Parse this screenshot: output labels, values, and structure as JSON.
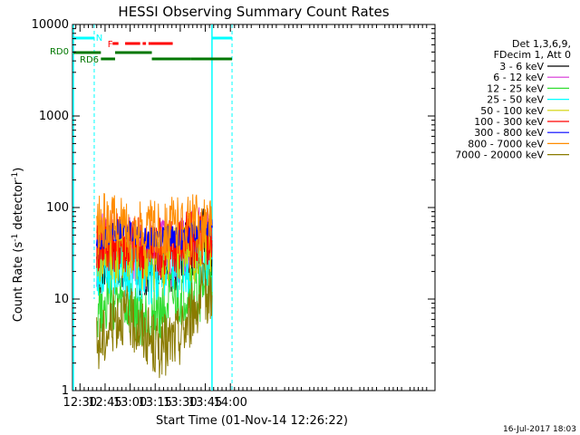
{
  "chart_data": {
    "type": "line",
    "title": "HESSI Observing Summary Count Rates",
    "xlabel": "Start Time (01-Nov-14 12:26:22)",
    "ylabel_main": "Count Rate (s",
    "ylabel_sup1": "-1",
    "ylabel_mid": " detector",
    "ylabel_sup2": "-1",
    "ylabel_end": ")",
    "yscale": "log",
    "ylim": [
      1,
      10000
    ],
    "xlim_minutes": [
      745.5,
      962.5
    ],
    "x_ticks": [
      {
        "label": "12:30",
        "min": 750
      },
      {
        "label": "12:45",
        "min": 765
      },
      {
        "label": "13:00",
        "min": 780
      },
      {
        "label": "13:15",
        "min": 795
      },
      {
        "label": "13:30",
        "min": 810
      },
      {
        "label": "13:45",
        "min": 825
      },
      {
        "label": "14:00",
        "min": 840
      }
    ],
    "y_ticks": [
      {
        "label": "1",
        "value": 1
      },
      {
        "label": "10",
        "value": 10
      },
      {
        "label": "100",
        "value": 100
      },
      {
        "label": "1000",
        "value": 1000
      },
      {
        "label": "10000",
        "value": 10000
      }
    ],
    "legend_header": [
      "Det 1,3,6,9,",
      "FDecim 1, Att 0"
    ],
    "series": [
      {
        "name": "3 - 6 keV",
        "color": "#000000",
        "points": [
          [
            760,
            20
          ],
          [
            765,
            30
          ],
          [
            770,
            35
          ],
          [
            775,
            30
          ],
          [
            780,
            28
          ],
          [
            785,
            25
          ],
          [
            790,
            22
          ],
          [
            795,
            30
          ],
          [
            800,
            28
          ],
          [
            805,
            25
          ],
          [
            810,
            30
          ],
          [
            815,
            35
          ],
          [
            820,
            40
          ],
          [
            825,
            45
          ],
          [
            829,
            40
          ]
        ]
      },
      {
        "name": "6 - 12 keV",
        "color": "#d633d6",
        "points": [
          [
            760,
            30
          ],
          [
            765,
            45
          ],
          [
            770,
            40
          ],
          [
            775,
            38
          ],
          [
            780,
            35
          ],
          [
            785,
            30
          ],
          [
            790,
            28
          ],
          [
            795,
            35
          ],
          [
            800,
            33
          ],
          [
            805,
            30
          ],
          [
            810,
            35
          ],
          [
            815,
            40
          ],
          [
            820,
            45
          ],
          [
            825,
            50
          ],
          [
            829,
            45
          ]
        ]
      },
      {
        "name": "12 - 25 keV",
        "color": "#33dd33",
        "points": [
          [
            760,
            8
          ],
          [
            765,
            10
          ],
          [
            770,
            9
          ],
          [
            775,
            8
          ],
          [
            780,
            7
          ],
          [
            785,
            6
          ],
          [
            790,
            6
          ],
          [
            795,
            7
          ],
          [
            800,
            8
          ],
          [
            805,
            9
          ],
          [
            810,
            10
          ],
          [
            815,
            12
          ],
          [
            820,
            12
          ],
          [
            825,
            13
          ],
          [
            829,
            12
          ]
        ]
      },
      {
        "name": "25 - 50 keV",
        "color": "#00ffff",
        "points": [
          [
            760,
            22
          ],
          [
            765,
            25
          ],
          [
            770,
            24
          ],
          [
            775,
            23
          ],
          [
            780,
            22
          ],
          [
            785,
            20
          ],
          [
            790,
            19
          ],
          [
            795,
            20
          ],
          [
            800,
            21
          ],
          [
            805,
            22
          ],
          [
            810,
            23
          ],
          [
            815,
            25
          ],
          [
            820,
            27
          ],
          [
            825,
            28
          ],
          [
            829,
            27
          ]
        ]
      },
      {
        "name": "50 - 100 keV",
        "color": "#d2d200",
        "points": [
          [
            760,
            30
          ],
          [
            765,
            33
          ],
          [
            770,
            32
          ],
          [
            775,
            31
          ],
          [
            780,
            30
          ],
          [
            785,
            28
          ],
          [
            790,
            27
          ],
          [
            795,
            28
          ],
          [
            800,
            29
          ],
          [
            805,
            30
          ],
          [
            810,
            31
          ],
          [
            815,
            33
          ],
          [
            820,
            34
          ],
          [
            825,
            35
          ],
          [
            829,
            34
          ]
        ]
      },
      {
        "name": "100 - 300 keV",
        "color": "#ff0000",
        "points": [
          [
            760,
            40
          ],
          [
            765,
            45
          ],
          [
            770,
            44
          ],
          [
            775,
            42
          ],
          [
            780,
            40
          ],
          [
            785,
            38
          ],
          [
            790,
            36
          ],
          [
            795,
            37
          ],
          [
            800,
            38
          ],
          [
            805,
            40
          ],
          [
            810,
            41
          ],
          [
            815,
            43
          ],
          [
            820,
            44
          ],
          [
            825,
            46
          ],
          [
            829,
            44
          ]
        ]
      },
      {
        "name": "300 - 800 keV",
        "color": "#0000ff",
        "points": [
          [
            760,
            40
          ],
          [
            765,
            45
          ],
          [
            770,
            55
          ],
          [
            775,
            60
          ],
          [
            780,
            55
          ],
          [
            785,
            48
          ],
          [
            790,
            45
          ],
          [
            795,
            47
          ],
          [
            800,
            50
          ],
          [
            805,
            48
          ],
          [
            810,
            45
          ],
          [
            815,
            50
          ],
          [
            820,
            58
          ],
          [
            825,
            62
          ],
          [
            829,
            60
          ]
        ]
      },
      {
        "name": "800 - 7000 keV",
        "color": "#ff8c00",
        "points": [
          [
            760,
            60
          ],
          [
            765,
            65
          ],
          [
            770,
            63
          ],
          [
            775,
            60
          ],
          [
            780,
            58
          ],
          [
            785,
            55
          ],
          [
            790,
            54
          ],
          [
            795,
            56
          ],
          [
            800,
            58
          ],
          [
            805,
            60
          ],
          [
            810,
            61
          ],
          [
            815,
            63
          ],
          [
            820,
            65
          ],
          [
            825,
            66
          ],
          [
            829,
            64
          ]
        ]
      },
      {
        "name": "7000 - 20000 keV",
        "color": "#8a7a00",
        "points": [
          [
            760,
            3
          ],
          [
            765,
            4
          ],
          [
            770,
            6
          ],
          [
            775,
            7
          ],
          [
            780,
            6
          ],
          [
            785,
            5
          ],
          [
            790,
            4
          ],
          [
            795,
            3
          ],
          [
            800,
            3
          ],
          [
            805,
            3.5
          ],
          [
            810,
            4
          ],
          [
            815,
            6
          ],
          [
            820,
            9
          ],
          [
            825,
            12
          ],
          [
            829,
            11
          ]
        ]
      }
    ],
    "flags": {
      "N_label": "N",
      "F_label": "F",
      "RD0_label": "RD0",
      "RD6_label": "RD6",
      "cyan_color": "#00ffff",
      "red_color": "#ff0000",
      "green_color": "#007700"
    },
    "footer_date": "16-Jul-2017 18:03"
  }
}
